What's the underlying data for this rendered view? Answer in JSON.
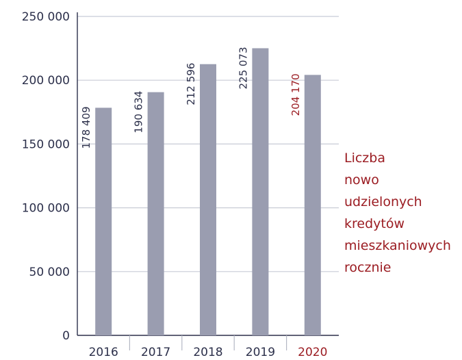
{
  "chart_data": {
    "type": "bar",
    "categories": [
      "2016",
      "2017",
      "2018",
      "2019",
      "2020"
    ],
    "values": [
      178409,
      190634,
      212596,
      225073,
      204170
    ],
    "value_labels": [
      "178 409",
      "190 634",
      "212 596",
      "225 073",
      "204 170"
    ],
    "highlight_category": "2020",
    "ylim": [
      0,
      250000
    ],
    "yticks": [
      0,
      50000,
      100000,
      150000,
      200000,
      250000
    ],
    "ytick_labels": [
      "0",
      "50 000",
      "100 000",
      "150 000",
      "200 000",
      "250 000"
    ],
    "grid": true,
    "legend_text": [
      "Liczba",
      "nowo",
      "udzielonych",
      "kredytów",
      "mieszkaniowych",
      "rocznie"
    ],
    "legend_placement": "right",
    "colors": {
      "bar": "#9a9db0",
      "highlight_text": "#9b1c22",
      "text": "#2b2f4a",
      "grid": "#c8ccd6"
    }
  }
}
